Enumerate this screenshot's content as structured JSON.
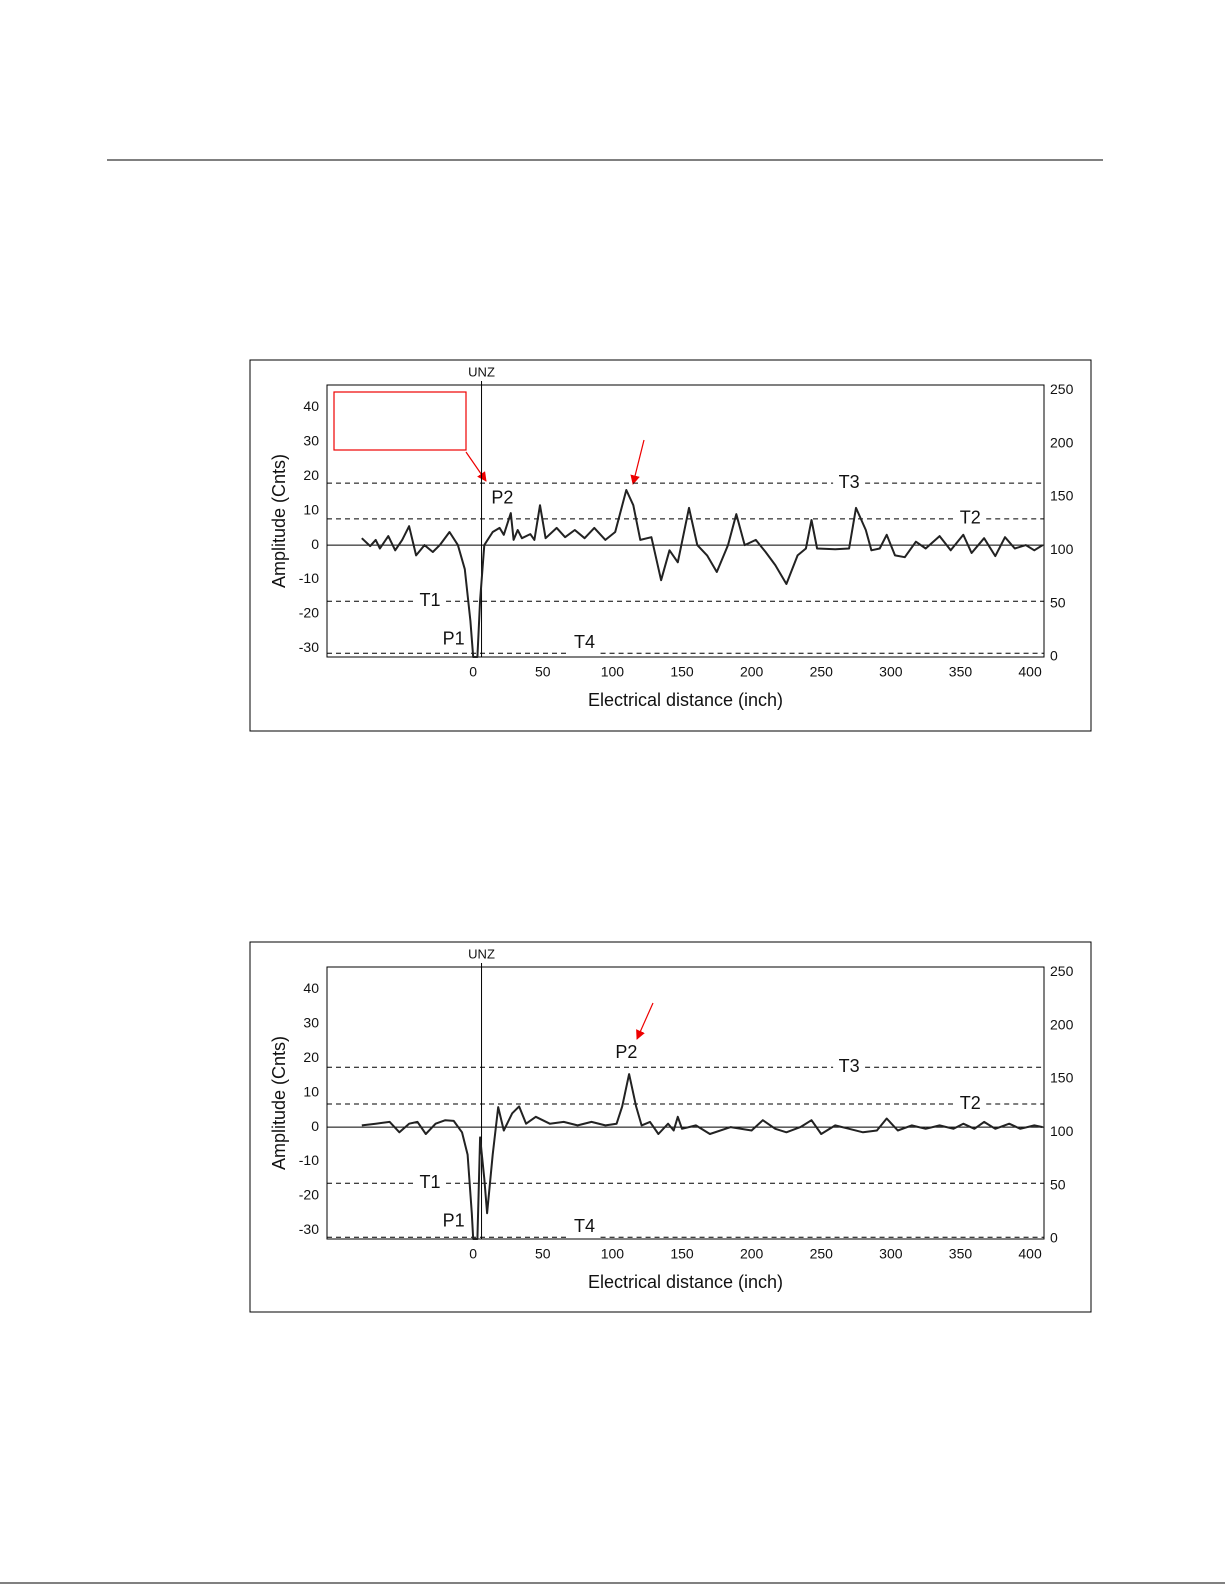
{
  "chart_data": [
    {
      "type": "line",
      "xlabel": "Electrical distance (inch)",
      "ylabel": "Amplitude (Cnts)",
      "xlim": [
        -105,
        410
      ],
      "xticks": [
        0,
        50,
        100,
        150,
        200,
        250,
        300,
        350,
        400
      ],
      "ylim": [
        -32.5,
        46.5
      ],
      "yticks": [
        40,
        30,
        20,
        10,
        0,
        -10,
        -20,
        -30
      ],
      "y2lim": [
        0,
        255
      ],
      "y2ticks": [
        250,
        200,
        150,
        100,
        50,
        0
      ],
      "series": [
        {
          "color": "#222222",
          "x": [
            -80,
            -74,
            -70,
            -67,
            -61,
            -56,
            -51,
            -46,
            -41,
            -35,
            -29,
            -24,
            -17,
            -11,
            -6,
            -2,
            0,
            3,
            5,
            8,
            14,
            19,
            22,
            27,
            29,
            32,
            35,
            41,
            44,
            48,
            52,
            60,
            66,
            73,
            80,
            87,
            95,
            102,
            110,
            115,
            120,
            128,
            135,
            141,
            147,
            155,
            161,
            168,
            175,
            183,
            189,
            195,
            203,
            210,
            217,
            225,
            233,
            239,
            243,
            247,
            260,
            270,
            275,
            282,
            286,
            292,
            297,
            303,
            310,
            318,
            325,
            335,
            343,
            352,
            358,
            367,
            375,
            382,
            389,
            397,
            403,
            409
          ],
          "values": [
            2,
            -0.3,
            1.5,
            -1,
            2.6,
            -1.5,
            1.5,
            5.5,
            -3,
            0,
            -2,
            0,
            3.8,
            0,
            -7,
            -22,
            -32.5,
            -32.5,
            -16,
            0,
            3.8,
            5,
            3,
            9.3,
            1.5,
            4.4,
            2,
            3.2,
            1.5,
            11.6,
            2,
            5,
            2.3,
            4.4,
            2,
            5,
            1.5,
            3.8,
            16,
            11.6,
            1.5,
            2.3,
            -10.2,
            -1.5,
            -5,
            10.8,
            0,
            -3,
            -7.8,
            0,
            9,
            0,
            1.5,
            -2,
            -5.8,
            -11.3,
            -3,
            -1,
            7.3,
            -1,
            -1.2,
            -1,
            10.8,
            4.4,
            -1.5,
            -1,
            3,
            -3,
            -3.5,
            1,
            -1,
            2.6,
            -1.5,
            3,
            -2.3,
            2,
            -3.2,
            2.3,
            -1,
            0,
            -1.5,
            0
          ]
        }
      ],
      "thresholds": [
        {
          "name": "T3",
          "value": 18,
          "label_x": 270
        },
        {
          "name": "T2",
          "value": 7.6,
          "label_x": 357
        },
        {
          "name": "T1",
          "value": -16.3,
          "label_x": -31
        },
        {
          "name": "T4",
          "value": -31.4,
          "label_x": 80
        }
      ],
      "vline": {
        "label": "UNZ",
        "x": 6
      },
      "annotations": [
        {
          "text": "P1",
          "x": -14,
          "y": -27.5
        },
        {
          "text": "P2",
          "x": 21,
          "y": 13.5
        }
      ]
    },
    {
      "type": "line",
      "xlabel": "Electrical distance (inch)",
      "ylabel": "Amplitude (Cnts)",
      "xlim": [
        -105,
        410
      ],
      "xticks": [
        0,
        50,
        100,
        150,
        200,
        250,
        300,
        350,
        400
      ],
      "ylim": [
        -32.5,
        46.5
      ],
      "yticks": [
        40,
        30,
        20,
        10,
        0,
        -10,
        -20,
        -30
      ],
      "y2lim": [
        0,
        255
      ],
      "y2ticks": [
        250,
        200,
        150,
        100,
        50,
        0
      ],
      "series": [
        {
          "color": "#222222",
          "x": [
            -80,
            -70,
            -60,
            -53,
            -46,
            -40,
            -34,
            -27,
            -20,
            -14,
            -8,
            -4,
            -1,
            0,
            3,
            5,
            8,
            10,
            14,
            18,
            22,
            28,
            33,
            38,
            45,
            55,
            65,
            75,
            85,
            95,
            103,
            107,
            112,
            117,
            121,
            127,
            133,
            140,
            144,
            147,
            150,
            160,
            170,
            185,
            200,
            208,
            217,
            225,
            235,
            243,
            250,
            260,
            270,
            280,
            290,
            297,
            305,
            315,
            325,
            335,
            345,
            352,
            360,
            367,
            375,
            385,
            393,
            403,
            409
          ],
          "values": [
            0.5,
            1,
            1.5,
            -1.5,
            1,
            1.5,
            -2,
            1,
            2,
            1.8,
            -1.5,
            -8,
            -25,
            -32.5,
            -32.5,
            -3,
            -15,
            -25,
            -8,
            5.8,
            -1,
            4,
            6,
            1,
            3,
            1,
            1.5,
            0.5,
            1.5,
            0.5,
            1,
            6,
            15.4,
            6,
            0.5,
            1.5,
            -2,
            1,
            -1,
            3,
            -0.5,
            0.5,
            -2,
            0,
            -1,
            2,
            -0.5,
            -1.5,
            0,
            2,
            -2,
            0.5,
            -0.5,
            -1.5,
            -1,
            2.5,
            -1,
            0.5,
            -0.5,
            0.5,
            -0.5,
            1,
            -0.5,
            1.5,
            -0.5,
            1,
            -0.5,
            0.5,
            0
          ]
        }
      ],
      "thresholds": [
        {
          "name": "T3",
          "value": 17.4,
          "label_x": 270
        },
        {
          "name": "T2",
          "value": 6.7,
          "label_x": 357
        },
        {
          "name": "T1",
          "value": -16.3,
          "label_x": -31
        },
        {
          "name": "T4",
          "value": -32,
          "label_x": 80
        }
      ],
      "vline": {
        "label": "UNZ",
        "x": 6
      },
      "annotations": [
        {
          "text": "P1",
          "x": -14,
          "y": -27.5
        },
        {
          "text": "P2",
          "x": 110,
          "y": 21.5
        }
      ]
    }
  ]
}
